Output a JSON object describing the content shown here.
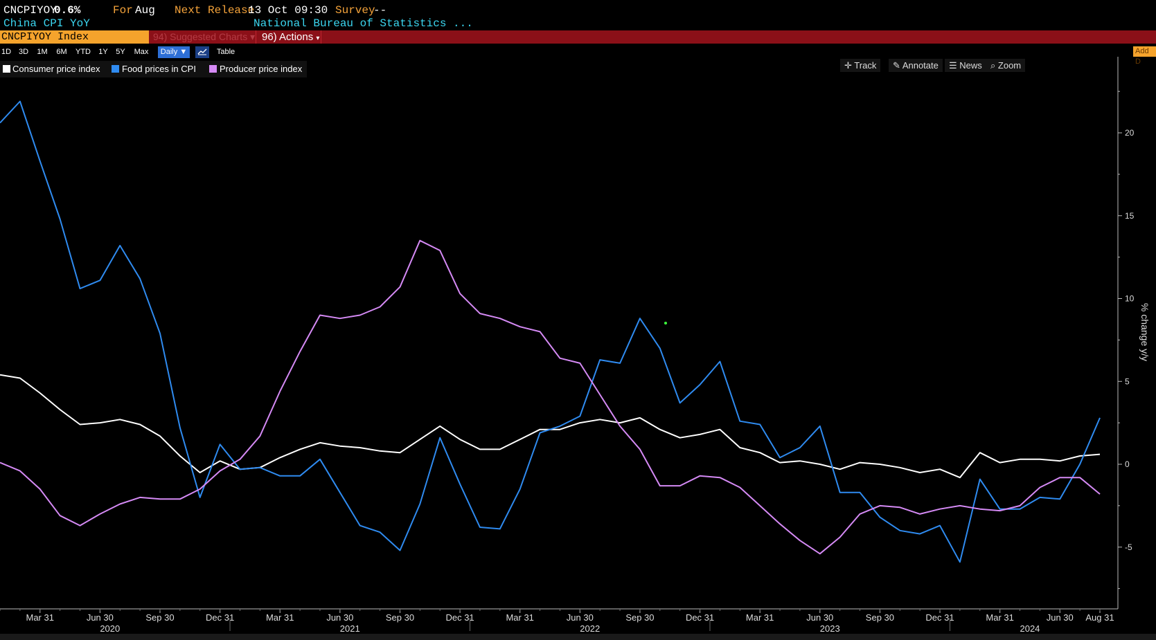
{
  "header": {
    "ticker": "CNCPIYOY",
    "value": "0.6%",
    "for_label": "For",
    "for_value": "Aug",
    "next_release_label": "Next Release",
    "next_release_value": "13 Oct 09:30",
    "survey_label": "Survey",
    "survey_value": "--",
    "subtitle": "China CPI YoY",
    "source": "National Bureau of Statistics ..."
  },
  "toolbar": {
    "security": "CNCPIYOY Index",
    "suggested_charts": "Suggested Charts",
    "suggested_prefix": "94)",
    "actions": "Actions",
    "actions_prefix": "96)",
    "ranges": [
      "1D",
      "3D",
      "1M",
      "6M",
      "YTD",
      "1Y",
      "5Y",
      "Max"
    ],
    "frequency": "Daily",
    "table_label": "Table",
    "add_data": "Add D"
  },
  "tools": {
    "track": "Track",
    "annotate": "Annotate",
    "news": "News",
    "zoom": "Zoom"
  },
  "colors": {
    "cpi": "#ffffff",
    "food": "#2f8bf0",
    "ppi": "#d58af5",
    "accent_orange": "#f5a32c",
    "toolbar_red": "#8b1018",
    "header_cyan": "#3bd6f0"
  },
  "chart_data": {
    "type": "line",
    "ylabel": "% change y/y",
    "ylim": [
      -7.5,
      24
    ],
    "yticks": [
      20,
      15,
      10,
      5,
      0,
      -5
    ],
    "y_tick_labels": [
      "20",
      "15",
      "10",
      "5",
      "0",
      "-5"
    ],
    "x_tick_labels": [
      "Mar 31",
      "Jun 30",
      "Sep 30",
      "Dec 31",
      "Mar 31",
      "Jun 30",
      "Sep 30",
      "Dec 31",
      "Mar 31",
      "Jun 30",
      "Sep 30",
      "Dec 31",
      "Mar 31",
      "Jun 30",
      "Sep 30",
      "Dec 31",
      "Mar 31",
      "Jun 30",
      "Aug 31"
    ],
    "year_labels": [
      "2020",
      "2021",
      "2022",
      "2023",
      "2024"
    ],
    "x": [
      "2020-01",
      "2020-02",
      "2020-03",
      "2020-04",
      "2020-05",
      "2020-06",
      "2020-07",
      "2020-08",
      "2020-09",
      "2020-10",
      "2020-11",
      "2020-12",
      "2021-01",
      "2021-02",
      "2021-03",
      "2021-04",
      "2021-05",
      "2021-06",
      "2021-07",
      "2021-08",
      "2021-09",
      "2021-10",
      "2021-11",
      "2021-12",
      "2022-01",
      "2022-02",
      "2022-03",
      "2022-04",
      "2022-05",
      "2022-06",
      "2022-07",
      "2022-08",
      "2022-09",
      "2022-10",
      "2022-11",
      "2022-12",
      "2023-01",
      "2023-02",
      "2023-03",
      "2023-04",
      "2023-05",
      "2023-06",
      "2023-07",
      "2023-08",
      "2023-09",
      "2023-10",
      "2023-11",
      "2023-12",
      "2024-01",
      "2024-02",
      "2024-03",
      "2024-04",
      "2024-05",
      "2024-06",
      "2024-07",
      "2024-08"
    ],
    "series": [
      {
        "name": "Consumer price index",
        "values": [
          5.4,
          5.2,
          4.3,
          3.3,
          2.4,
          2.5,
          2.7,
          2.4,
          1.7,
          0.5,
          -0.5,
          0.2,
          -0.3,
          -0.2,
          0.4,
          0.9,
          1.3,
          1.1,
          1.0,
          0.8,
          0.7,
          1.5,
          2.3,
          1.5,
          0.9,
          0.9,
          1.5,
          2.1,
          2.1,
          2.5,
          2.7,
          2.5,
          2.8,
          2.1,
          1.6,
          1.8,
          2.1,
          1.0,
          0.7,
          0.1,
          0.2,
          0.0,
          -0.3,
          0.1,
          0.0,
          -0.2,
          -0.5,
          -0.3,
          -0.8,
          0.7,
          0.1,
          0.3,
          0.3,
          0.2,
          0.5,
          0.6
        ]
      },
      {
        "name": "Food prices in CPI",
        "values": [
          20.6,
          21.9,
          18.3,
          14.8,
          10.6,
          11.1,
          13.2,
          11.2,
          7.9,
          2.2,
          -2.0,
          1.2,
          -0.3,
          -0.2,
          -0.7,
          -0.7,
          0.3,
          -1.7,
          -3.7,
          -4.1,
          -5.2,
          -2.4,
          1.6,
          -1.2,
          -3.8,
          -3.9,
          -1.5,
          1.9,
          2.3,
          2.9,
          6.3,
          6.1,
          8.8,
          7.0,
          3.7,
          4.8,
          6.2,
          2.6,
          2.4,
          0.4,
          1.0,
          2.3,
          -1.7,
          -1.7,
          -3.2,
          -4.0,
          -4.2,
          -3.7,
          -5.9,
          -0.9,
          -2.7,
          -2.7,
          -2.0,
          -2.1,
          0.0,
          2.8
        ]
      },
      {
        "name": "Producer price index",
        "values": [
          0.1,
          -0.4,
          -1.5,
          -3.1,
          -3.7,
          -3.0,
          -2.4,
          -2.0,
          -2.1,
          -2.1,
          -1.5,
          -0.4,
          0.3,
          1.7,
          4.4,
          6.8,
          9.0,
          8.8,
          9.0,
          9.5,
          10.7,
          13.5,
          12.9,
          10.3,
          9.1,
          8.8,
          8.3,
          8.0,
          6.4,
          6.1,
          4.2,
          2.3,
          0.9,
          -1.3,
          -1.3,
          -0.7,
          -0.8,
          -1.4,
          -2.5,
          -3.6,
          -4.6,
          -5.4,
          -4.4,
          -3.0,
          -2.5,
          -2.6,
          -3.0,
          -2.7,
          -2.5,
          -2.7,
          -2.8,
          -2.5,
          -1.4,
          -0.8,
          -0.8,
          -1.8
        ]
      }
    ]
  }
}
